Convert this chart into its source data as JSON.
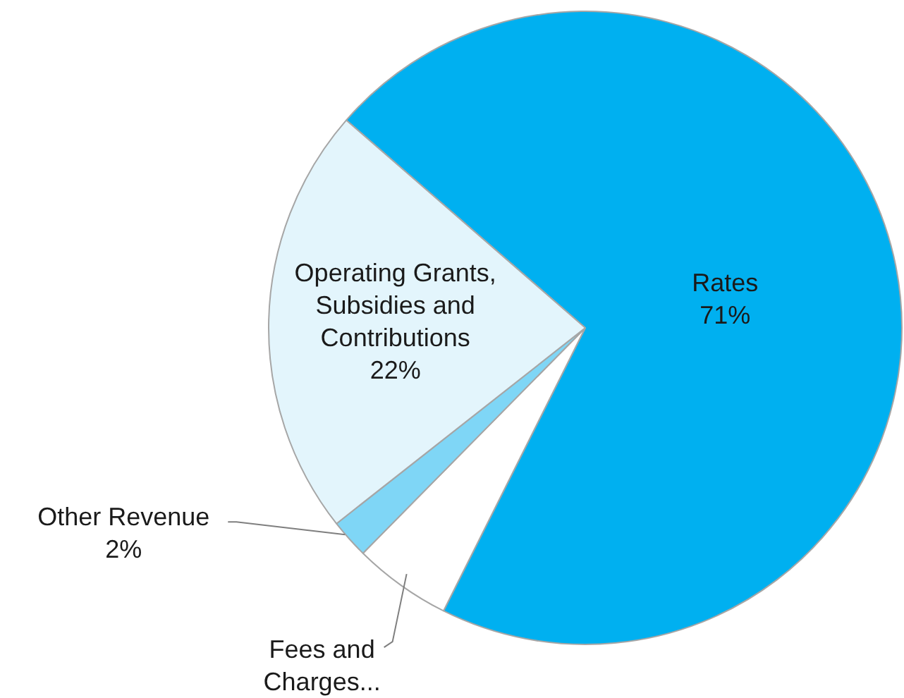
{
  "chart_data": {
    "type": "pie",
    "categories": [
      "Rates",
      "Fees and Charges...",
      "Other Revenue",
      "Operating Grants, Subsidies and Contributions"
    ],
    "values": [
      71,
      5,
      2,
      22
    ],
    "value_labels": [
      "71%",
      null,
      "2%",
      "22%"
    ],
    "colors": [
      "#00b0f0",
      "#ffffff",
      "#7fd6f6",
      "#e3f5fc"
    ],
    "legend": false
  }
}
